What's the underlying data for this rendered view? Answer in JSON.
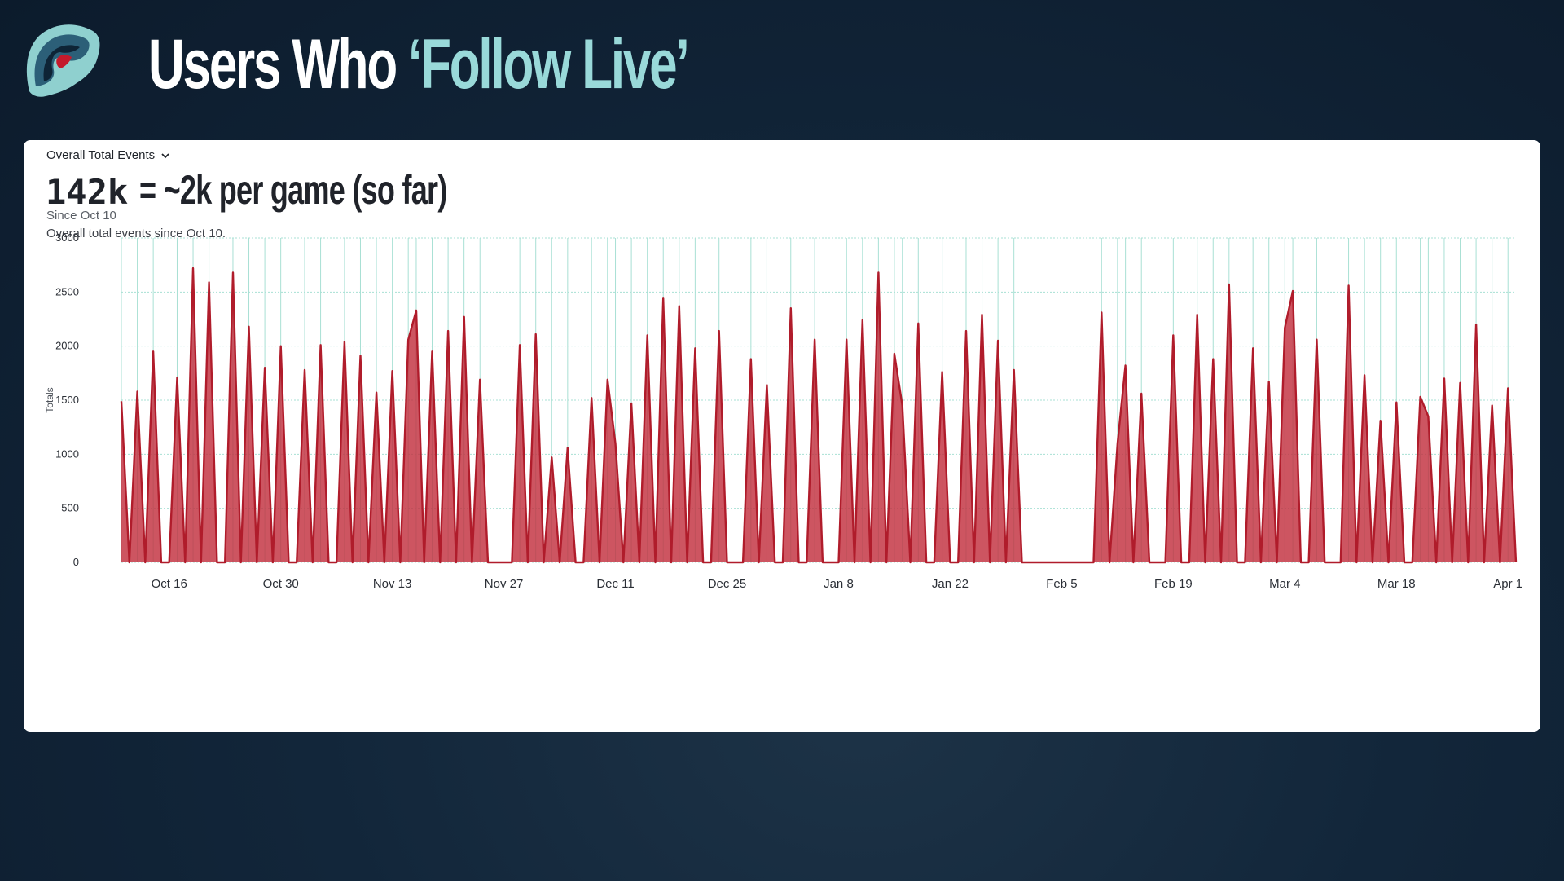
{
  "slide": {
    "title_main": "Users Who ",
    "title_accent": "‘Follow Live’",
    "logo_icon": "kraken-tentacle-logo-icon"
  },
  "card": {
    "metric_select_label": "Overall Total Events",
    "metric_value": "142k",
    "metric_note": "= ~2k per game (so far)",
    "since": "Since Oct 10",
    "description": "Overall total events since Oct 10."
  },
  "colors": {
    "accent": "#99d9d9",
    "series_line": "#b01c2b",
    "series_fill": "#c2303e",
    "gridline": "#a8e0d4",
    "background": "#0f2133"
  },
  "chart_data": {
    "type": "area",
    "ylabel": "Totals",
    "ylim": [
      0,
      3000
    ],
    "yticks": [
      0,
      500,
      1000,
      1500,
      2000,
      2500,
      3000
    ],
    "xlim": [
      "2023-10-10",
      "2024-04-02"
    ],
    "xticks": [
      {
        "date": "2023-10-16",
        "label": "Oct 16"
      },
      {
        "date": "2023-10-30",
        "label": "Oct 30"
      },
      {
        "date": "2023-11-13",
        "label": "Nov 13"
      },
      {
        "date": "2023-11-27",
        "label": "Nov 27"
      },
      {
        "date": "2023-12-11",
        "label": "Dec 11"
      },
      {
        "date": "2023-12-25",
        "label": "Dec 25"
      },
      {
        "date": "2024-01-08",
        "label": "Jan 8"
      },
      {
        "date": "2024-01-22",
        "label": "Jan 22"
      },
      {
        "date": "2024-02-05",
        "label": "Feb 5"
      },
      {
        "date": "2024-02-19",
        "label": "Feb 19"
      },
      {
        "date": "2024-03-04",
        "label": "Mar 4"
      },
      {
        "date": "2024-03-18",
        "label": "Mar 18"
      },
      {
        "date": "2024-04-01",
        "label": "Apr 1"
      }
    ],
    "grid": true,
    "legend": "none",
    "series": [
      {
        "points": [
          [
            "2023-10-10",
            1490
          ],
          [
            "2023-10-11",
            0
          ],
          [
            "2023-10-12",
            1580
          ],
          [
            "2023-10-13",
            0
          ],
          [
            "2023-10-14",
            1950
          ],
          [
            "2023-10-15",
            0
          ],
          [
            "2023-10-16",
            0
          ],
          [
            "2023-10-17",
            1710
          ],
          [
            "2023-10-18",
            0
          ],
          [
            "2023-10-19",
            2720
          ],
          [
            "2023-10-20",
            0
          ],
          [
            "2023-10-21",
            2590
          ],
          [
            "2023-10-22",
            0
          ],
          [
            "2023-10-23",
            0
          ],
          [
            "2023-10-24",
            2680
          ],
          [
            "2023-10-25",
            0
          ],
          [
            "2023-10-26",
            2180
          ],
          [
            "2023-10-27",
            0
          ],
          [
            "2023-10-28",
            1800
          ],
          [
            "2023-10-29",
            0
          ],
          [
            "2023-10-30",
            2000
          ],
          [
            "2023-10-31",
            0
          ],
          [
            "2023-11-01",
            0
          ],
          [
            "2023-11-02",
            1780
          ],
          [
            "2023-11-03",
            0
          ],
          [
            "2023-11-04",
            2010
          ],
          [
            "2023-11-05",
            0
          ],
          [
            "2023-11-06",
            0
          ],
          [
            "2023-11-07",
            2040
          ],
          [
            "2023-11-08",
            0
          ],
          [
            "2023-11-09",
            1910
          ],
          [
            "2023-11-10",
            0
          ],
          [
            "2023-11-11",
            1570
          ],
          [
            "2023-11-12",
            0
          ],
          [
            "2023-11-13",
            1770
          ],
          [
            "2023-11-14",
            0
          ],
          [
            "2023-11-15",
            2060
          ],
          [
            "2023-11-16",
            2330
          ],
          [
            "2023-11-17",
            0
          ],
          [
            "2023-11-18",
            1950
          ],
          [
            "2023-11-19",
            0
          ],
          [
            "2023-11-20",
            2140
          ],
          [
            "2023-11-21",
            0
          ],
          [
            "2023-11-22",
            2270
          ],
          [
            "2023-11-23",
            0
          ],
          [
            "2023-11-24",
            1690
          ],
          [
            "2023-11-25",
            0
          ],
          [
            "2023-11-26",
            0
          ],
          [
            "2023-11-27",
            0
          ],
          [
            "2023-11-28",
            0
          ],
          [
            "2023-11-29",
            2010
          ],
          [
            "2023-11-30",
            0
          ],
          [
            "2023-12-01",
            2110
          ],
          [
            "2023-12-02",
            0
          ],
          [
            "2023-12-03",
            970
          ],
          [
            "2023-12-04",
            0
          ],
          [
            "2023-12-05",
            1060
          ],
          [
            "2023-12-06",
            0
          ],
          [
            "2023-12-07",
            0
          ],
          [
            "2023-12-08",
            1520
          ],
          [
            "2023-12-09",
            0
          ],
          [
            "2023-12-10",
            1690
          ],
          [
            "2023-12-11",
            1100
          ],
          [
            "2023-12-12",
            0
          ],
          [
            "2023-12-13",
            1470
          ],
          [
            "2023-12-14",
            0
          ],
          [
            "2023-12-15",
            2100
          ],
          [
            "2023-12-16",
            0
          ],
          [
            "2023-12-17",
            2440
          ],
          [
            "2023-12-18",
            0
          ],
          [
            "2023-12-19",
            2370
          ],
          [
            "2023-12-20",
            0
          ],
          [
            "2023-12-21",
            1980
          ],
          [
            "2023-12-22",
            0
          ],
          [
            "2023-12-23",
            0
          ],
          [
            "2023-12-24",
            2140
          ],
          [
            "2023-12-25",
            0
          ],
          [
            "2023-12-26",
            0
          ],
          [
            "2023-12-27",
            0
          ],
          [
            "2023-12-28",
            1880
          ],
          [
            "2023-12-29",
            0
          ],
          [
            "2023-12-30",
            1640
          ],
          [
            "2023-12-31",
            0
          ],
          [
            "2024-01-01",
            0
          ],
          [
            "2024-01-02",
            2350
          ],
          [
            "2024-01-03",
            0
          ],
          [
            "2024-01-04",
            0
          ],
          [
            "2024-01-05",
            2060
          ],
          [
            "2024-01-06",
            0
          ],
          [
            "2024-01-07",
            0
          ],
          [
            "2024-01-08",
            0
          ],
          [
            "2024-01-09",
            2060
          ],
          [
            "2024-01-10",
            0
          ],
          [
            "2024-01-11",
            2240
          ],
          [
            "2024-01-12",
            0
          ],
          [
            "2024-01-13",
            2680
          ],
          [
            "2024-01-14",
            0
          ],
          [
            "2024-01-15",
            1930
          ],
          [
            "2024-01-16",
            1450
          ],
          [
            "2024-01-17",
            0
          ],
          [
            "2024-01-18",
            2210
          ],
          [
            "2024-01-19",
            0
          ],
          [
            "2024-01-20",
            0
          ],
          [
            "2024-01-21",
            1760
          ],
          [
            "2024-01-22",
            0
          ],
          [
            "2024-01-23",
            0
          ],
          [
            "2024-01-24",
            2140
          ],
          [
            "2024-01-25",
            0
          ],
          [
            "2024-01-26",
            2290
          ],
          [
            "2024-01-27",
            0
          ],
          [
            "2024-01-28",
            2050
          ],
          [
            "2024-01-29",
            0
          ],
          [
            "2024-01-30",
            1780
          ],
          [
            "2024-01-31",
            0
          ],
          [
            "2024-02-01",
            0
          ],
          [
            "2024-02-05",
            0
          ],
          [
            "2024-02-09",
            0
          ],
          [
            "2024-02-10",
            2310
          ],
          [
            "2024-02-11",
            0
          ],
          [
            "2024-02-12",
            1100
          ],
          [
            "2024-02-13",
            1820
          ],
          [
            "2024-02-14",
            0
          ],
          [
            "2024-02-15",
            1560
          ],
          [
            "2024-02-16",
            0
          ],
          [
            "2024-02-17",
            0
          ],
          [
            "2024-02-18",
            0
          ],
          [
            "2024-02-19",
            2100
          ],
          [
            "2024-02-20",
            0
          ],
          [
            "2024-02-21",
            0
          ],
          [
            "2024-02-22",
            2290
          ],
          [
            "2024-02-23",
            0
          ],
          [
            "2024-02-24",
            1880
          ],
          [
            "2024-02-25",
            0
          ],
          [
            "2024-02-26",
            2570
          ],
          [
            "2024-02-27",
            0
          ],
          [
            "2024-02-28",
            0
          ],
          [
            "2024-02-29",
            1980
          ],
          [
            "2024-03-01",
            0
          ],
          [
            "2024-03-02",
            1670
          ],
          [
            "2024-03-03",
            0
          ],
          [
            "2024-03-04",
            2170
          ],
          [
            "2024-03-05",
            2510
          ],
          [
            "2024-03-06",
            0
          ],
          [
            "2024-03-07",
            0
          ],
          [
            "2024-03-08",
            2060
          ],
          [
            "2024-03-09",
            0
          ],
          [
            "2024-03-10",
            0
          ],
          [
            "2024-03-11",
            0
          ],
          [
            "2024-03-12",
            2560
          ],
          [
            "2024-03-13",
            0
          ],
          [
            "2024-03-14",
            1730
          ],
          [
            "2024-03-15",
            0
          ],
          [
            "2024-03-16",
            1310
          ],
          [
            "2024-03-17",
            0
          ],
          [
            "2024-03-18",
            1480
          ],
          [
            "2024-03-19",
            0
          ],
          [
            "2024-03-20",
            0
          ],
          [
            "2024-03-21",
            1530
          ],
          [
            "2024-03-22",
            1350
          ],
          [
            "2024-03-23",
            0
          ],
          [
            "2024-03-24",
            1700
          ],
          [
            "2024-03-25",
            0
          ],
          [
            "2024-03-26",
            1660
          ],
          [
            "2024-03-27",
            0
          ],
          [
            "2024-03-28",
            2200
          ],
          [
            "2024-03-29",
            0
          ],
          [
            "2024-03-30",
            1450
          ],
          [
            "2024-03-31",
            0
          ],
          [
            "2024-04-01",
            1610
          ],
          [
            "2024-04-02",
            0
          ]
        ]
      }
    ]
  }
}
